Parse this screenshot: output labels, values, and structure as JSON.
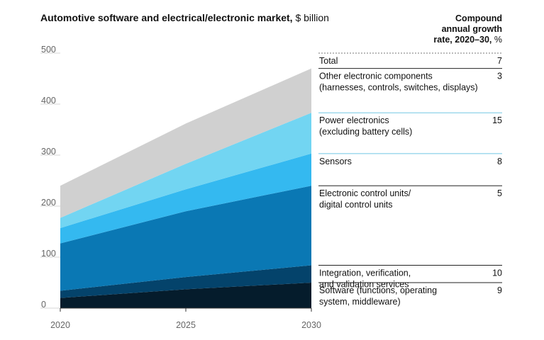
{
  "title_bold": "Automotive software and electrical/electronic market,",
  "title_unit": "$ billion",
  "cagr_header": {
    "line1": "Compound",
    "line2": "annual growth",
    "line3_bold": "rate, 2020–30,",
    "line3_unit": "%"
  },
  "chart_data": {
    "type": "area",
    "stacked": true,
    "title": "Automotive software and electrical/electronic market, $ billion",
    "x": [
      2020,
      2025,
      2030
    ],
    "xlabel": "",
    "ylabel": "",
    "ylim": [
      0,
      500
    ],
    "yticks": [
      0,
      100,
      200,
      300,
      400,
      500
    ],
    "grid": false,
    "series": [
      {
        "name": "Software (functions, operating system, middleware)",
        "values": [
          20,
          37,
          50
        ],
        "cagr": "9",
        "color": "#051c2c"
      },
      {
        "name": "Integration, verification, and validation services",
        "values": [
          14,
          24,
          34
        ],
        "cagr": "10",
        "color": "#04436b"
      },
      {
        "name": "Electronic control units/ digital control units",
        "values": [
          93,
          129,
          156
        ],
        "cagr": "5",
        "color": "#0a78b4"
      },
      {
        "name": "Sensors",
        "values": [
          30,
          43,
          63
        ],
        "cagr": "8",
        "color": "#34b9f0"
      },
      {
        "name": "Power electronics (excluding battery cells)",
        "values": [
          20,
          50,
          80
        ],
        "cagr": "15",
        "color": "#72d5f2"
      },
      {
        "name": "Other electronic components (harnesses, controls, switches, displays)",
        "values": [
          63,
          79,
          87
        ],
        "cagr": "3",
        "color": "#d0d0d0"
      }
    ],
    "total": {
      "name": "Total",
      "values": [
        240,
        362,
        470
      ],
      "cagr": "7"
    }
  },
  "rows": [
    {
      "lines": [
        "Total"
      ],
      "cagr": "7"
    },
    {
      "lines": [
        "Other electronic components",
        "(harnesses, controls, switches, displays)"
      ],
      "cagr": "3"
    },
    {
      "lines": [
        "Power electronics",
        "(excluding battery cells)"
      ],
      "cagr": "15"
    },
    {
      "lines": [
        "Sensors"
      ],
      "cagr": "8"
    },
    {
      "lines": [
        "Electronic control units/",
        "digital control units"
      ],
      "cagr": "5"
    },
    {
      "lines": [
        "Integration, verification,",
        "and validation services"
      ],
      "cagr": "10"
    },
    {
      "lines": [
        "Software (functions, operating",
        "system, middleware)"
      ],
      "cagr": "9"
    }
  ]
}
